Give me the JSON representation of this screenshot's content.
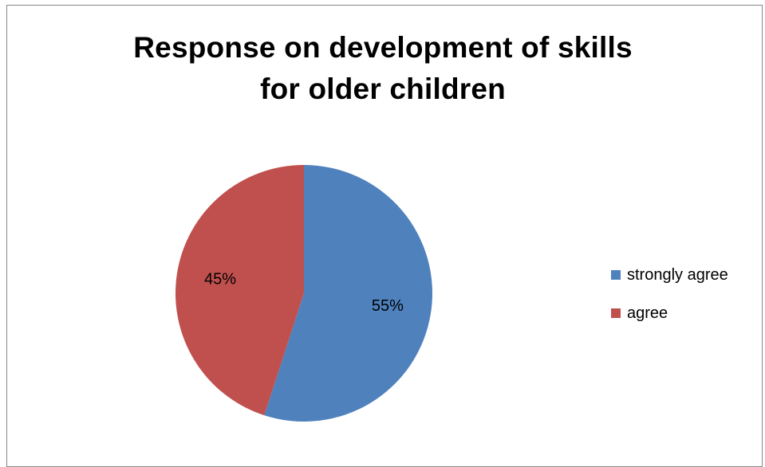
{
  "chart_data": {
    "type": "pie",
    "title": "Response on development of skills for older children",
    "title_lines": [
      "Response on development of skills",
      "for older children"
    ],
    "slices": [
      {
        "label": "strongly agree",
        "value": 55,
        "display": "55%",
        "color": "#4F81BD"
      },
      {
        "label": "agree",
        "value": 45,
        "display": "45%",
        "color": "#C0504D"
      }
    ],
    "legend": {
      "position": "right",
      "items": [
        "strongly agree",
        "agree"
      ]
    },
    "start_angle": "12 o'clock",
    "direction": "clockwise"
  }
}
